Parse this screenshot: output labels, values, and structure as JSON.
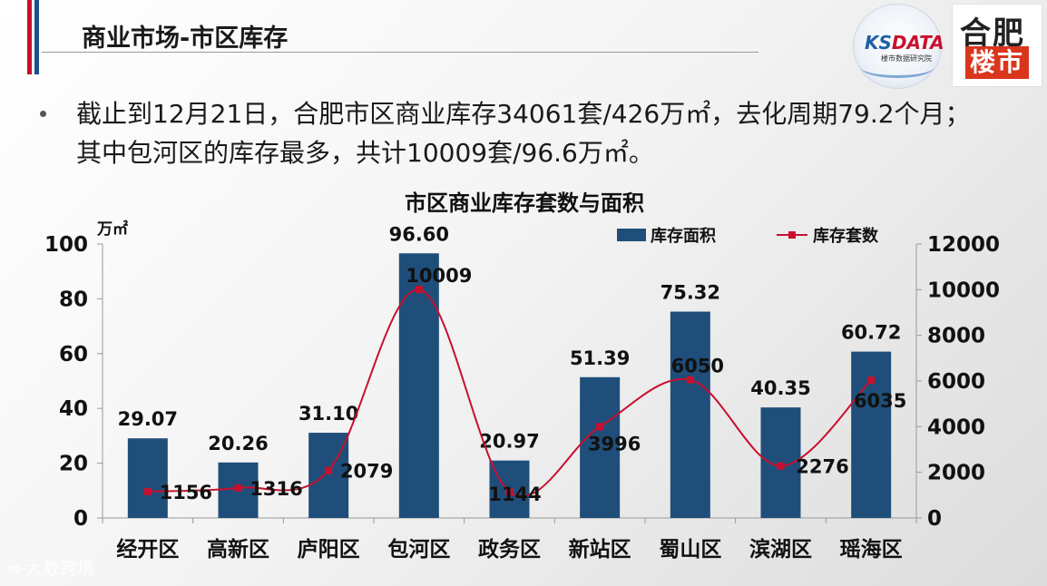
{
  "header": {
    "title": "商业市场-市区库存",
    "logo_ks_text": "KS",
    "logo_data_text": "DATA",
    "logo_sub": "楼市数据研究院",
    "logo2_line1": "合肥",
    "logo2_line2": "楼市"
  },
  "summary": {
    "text": "截止到12月21日，合肥市区商业库存34061套/426万㎡，去化周期79.2个月；其中包河区的库存最多，共计10009套/96.6万㎡。"
  },
  "watermark": {
    "mark": "∞",
    "text": "大数跨境"
  },
  "colors": {
    "bar": "#1f4e7a",
    "line": "#c8102e",
    "accent_red": "#c8102e",
    "accent_blue": "#1f4e8c"
  },
  "chart_data": {
    "type": "bar+line",
    "title": "市区商业库存套数与面积",
    "ylabel_left": "万㎡",
    "ylim_left": [
      0,
      100
    ],
    "yticks_left": [
      0,
      20,
      40,
      60,
      80,
      100
    ],
    "ylim_right": [
      0,
      12000
    ],
    "yticks_right": [
      0,
      2000,
      4000,
      6000,
      8000,
      10000,
      12000
    ],
    "categories": [
      "经开区",
      "高新区",
      "庐阳区",
      "包河区",
      "政务区",
      "新站区",
      "蜀山区",
      "滨湖区",
      "瑶海区"
    ],
    "series": [
      {
        "name": "库存面积",
        "type": "bar",
        "axis": "left",
        "values": [
          29.07,
          20.26,
          31.1,
          96.6,
          20.97,
          51.39,
          75.32,
          40.35,
          60.72
        ],
        "labels": [
          "29.07",
          "20.26",
          "31.10",
          "96.60",
          "20.97",
          "51.39",
          "75.32",
          "40.35",
          "60.72"
        ]
      },
      {
        "name": "库存套数",
        "type": "line",
        "axis": "right",
        "values": [
          1156,
          1316,
          2079,
          10009,
          1144,
          3996,
          6050,
          2276,
          6035
        ],
        "labels": [
          "1156",
          "1316",
          "2079",
          "10009",
          "1144",
          "3996",
          "6050",
          "2276",
          "6035"
        ]
      }
    ],
    "legend_position": "top-right"
  }
}
